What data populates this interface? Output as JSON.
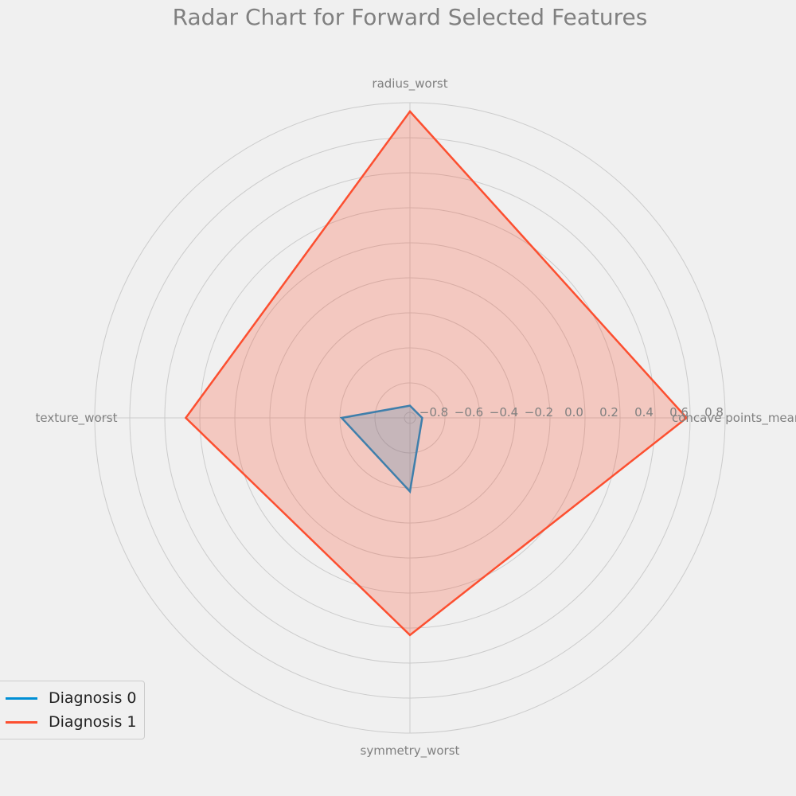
{
  "chart_data": {
    "type": "radar",
    "title": "Radar Chart for Forward Selected Features",
    "axes": [
      "radius_worst",
      "concave points_mean",
      "symmetry_worst",
      "texture_worst"
    ],
    "tick_labels": [
      "−0.8",
      "−0.6",
      "−0.4",
      "−0.2",
      "0.0",
      "0.2",
      "0.4",
      "0.6",
      "0.8"
    ],
    "rlim": [
      -1.0,
      0.8
    ],
    "grid": true,
    "legend_position": "lower-left",
    "series": [
      {
        "name": "Diagnosis 0",
        "values": [
          -0.93,
          -0.93,
          -0.58,
          -0.61
        ],
        "color": "#008fd5"
      },
      {
        "name": "Diagnosis 1",
        "values": [
          0.75,
          0.58,
          0.24,
          0.28
        ],
        "color": "#fc4f30"
      }
    ]
  }
}
